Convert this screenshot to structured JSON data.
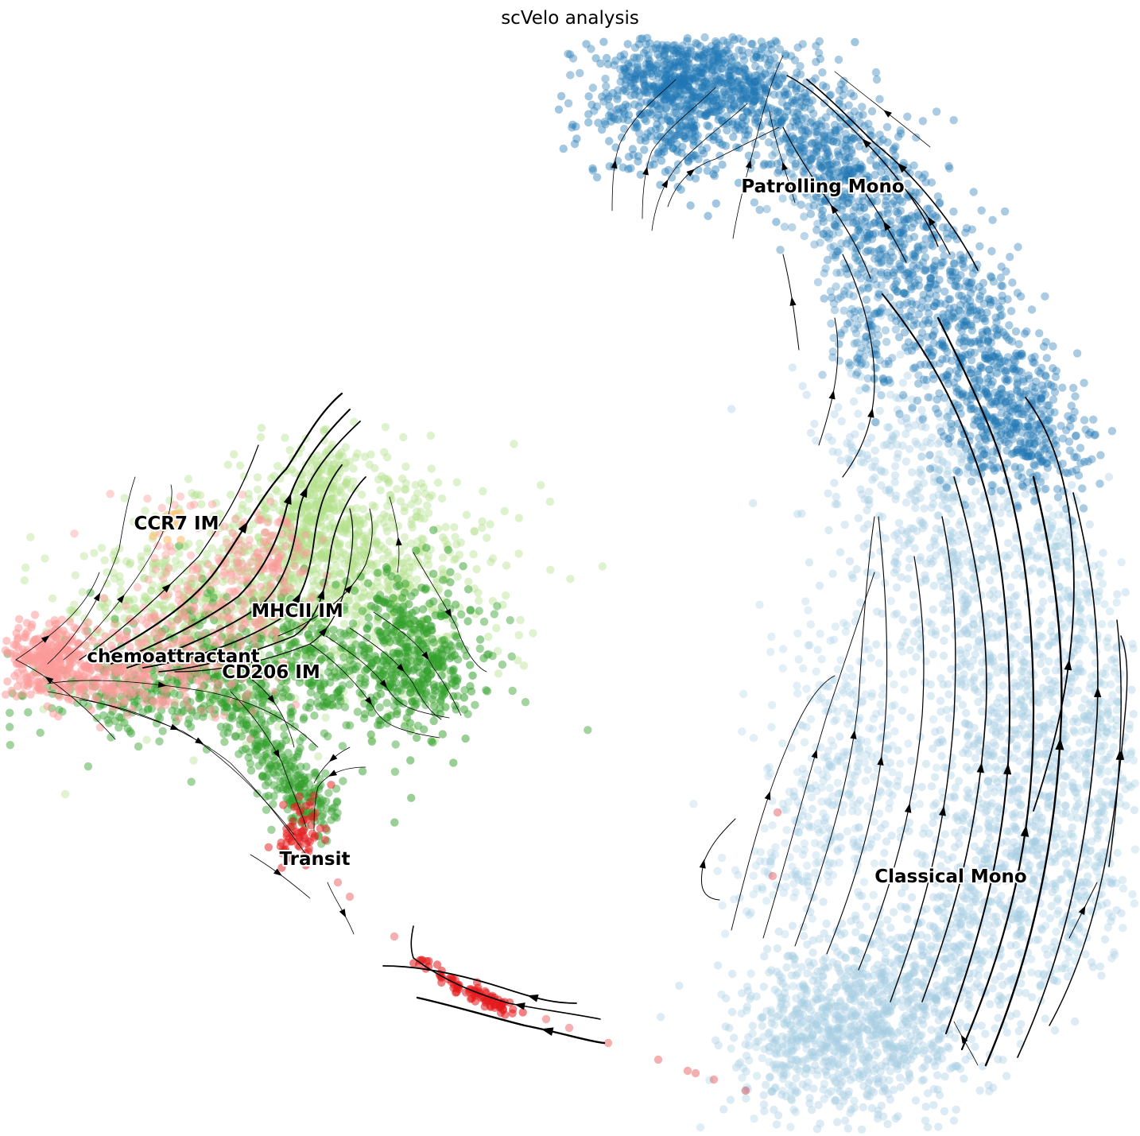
{
  "chart_data": {
    "type": "scatter",
    "title": "scVelo analysis",
    "xlabel": "",
    "ylabel": "",
    "axes": "off",
    "grid": false,
    "legend": "on data",
    "clusters": [
      {
        "label": "Patrolling Mono",
        "color": "#1f77b4"
      },
      {
        "label": "Classical Mono",
        "color": "#a6cee3"
      },
      {
        "label": "CCR7 IM",
        "color": "#fdbf6f"
      },
      {
        "label": "MHCII IM",
        "color": "#b2df8a"
      },
      {
        "label": "chemoattractant",
        "color": "#fb9a99"
      },
      {
        "label": "CD206 IM",
        "color": "#33a02c"
      },
      {
        "label": "Transit",
        "color": "#e31a1c"
      }
    ],
    "stream_color": "#000000"
  }
}
